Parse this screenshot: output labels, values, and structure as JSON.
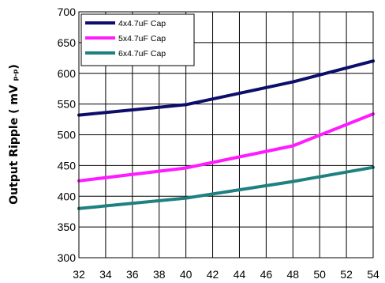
{
  "chart_data": {
    "type": "line",
    "title": "",
    "xlabel": "",
    "ylabel_main": "Output Ripple ( mV ",
    "ylabel_sub": "p-p",
    "ylabel_close": ")",
    "xlim": [
      32,
      54
    ],
    "ylim": [
      300,
      700
    ],
    "xticks": [
      32,
      34,
      36,
      38,
      40,
      42,
      44,
      46,
      48,
      50,
      52,
      54
    ],
    "yticks": [
      300,
      350,
      400,
      450,
      500,
      550,
      600,
      650,
      700
    ],
    "grid": true,
    "legend_position": "top-left",
    "series": [
      {
        "name": "4x4.7uF Cap",
        "color": "#0d0e6b",
        "x": [
          32,
          40,
          48,
          54
        ],
        "y": [
          532,
          549,
          586,
          620
        ]
      },
      {
        "name": "5x4.7uF Cap",
        "color": "#ff1aff",
        "x": [
          32,
          40,
          48,
          54
        ],
        "y": [
          425,
          446,
          482,
          534
        ]
      },
      {
        "name": "6x4.7uF Cap",
        "color": "#1e8080",
        "x": [
          32,
          40,
          48,
          54
        ],
        "y": [
          380,
          397,
          424,
          447
        ]
      }
    ]
  }
}
